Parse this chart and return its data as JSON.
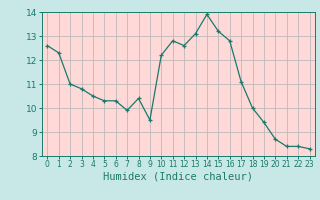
{
  "xlabel": "Humidex (Indice chaleur)",
  "ylabel": "",
  "outer_bg": "#c8e8e8",
  "plot_bg": "#ffd8d8",
  "grid_color": "#c0b8b8",
  "line_color": "#1a7a6a",
  "marker_color": "#1a7a6a",
  "x": [
    0,
    1,
    2,
    3,
    4,
    5,
    6,
    7,
    8,
    9,
    10,
    11,
    12,
    13,
    14,
    15,
    16,
    17,
    18,
    19,
    20,
    21,
    22,
    23
  ],
  "y": [
    12.6,
    12.3,
    11.0,
    10.8,
    10.5,
    10.3,
    10.3,
    9.9,
    10.4,
    9.5,
    12.2,
    12.8,
    12.6,
    13.1,
    13.9,
    13.2,
    12.8,
    11.1,
    10.0,
    9.4,
    8.7,
    8.4,
    8.4,
    8.3
  ],
  "ylim": [
    8,
    14
  ],
  "xlim": [
    -0.5,
    23.5
  ],
  "yticks": [
    8,
    9,
    10,
    11,
    12,
    13,
    14
  ],
  "xticks": [
    0,
    1,
    2,
    3,
    4,
    5,
    6,
    7,
    8,
    9,
    10,
    11,
    12,
    13,
    14,
    15,
    16,
    17,
    18,
    19,
    20,
    21,
    22,
    23
  ],
  "tick_color": "#1a7a6a",
  "xlabel_fontsize": 7.5,
  "ytick_fontsize": 6.5,
  "xtick_fontsize": 5.5
}
